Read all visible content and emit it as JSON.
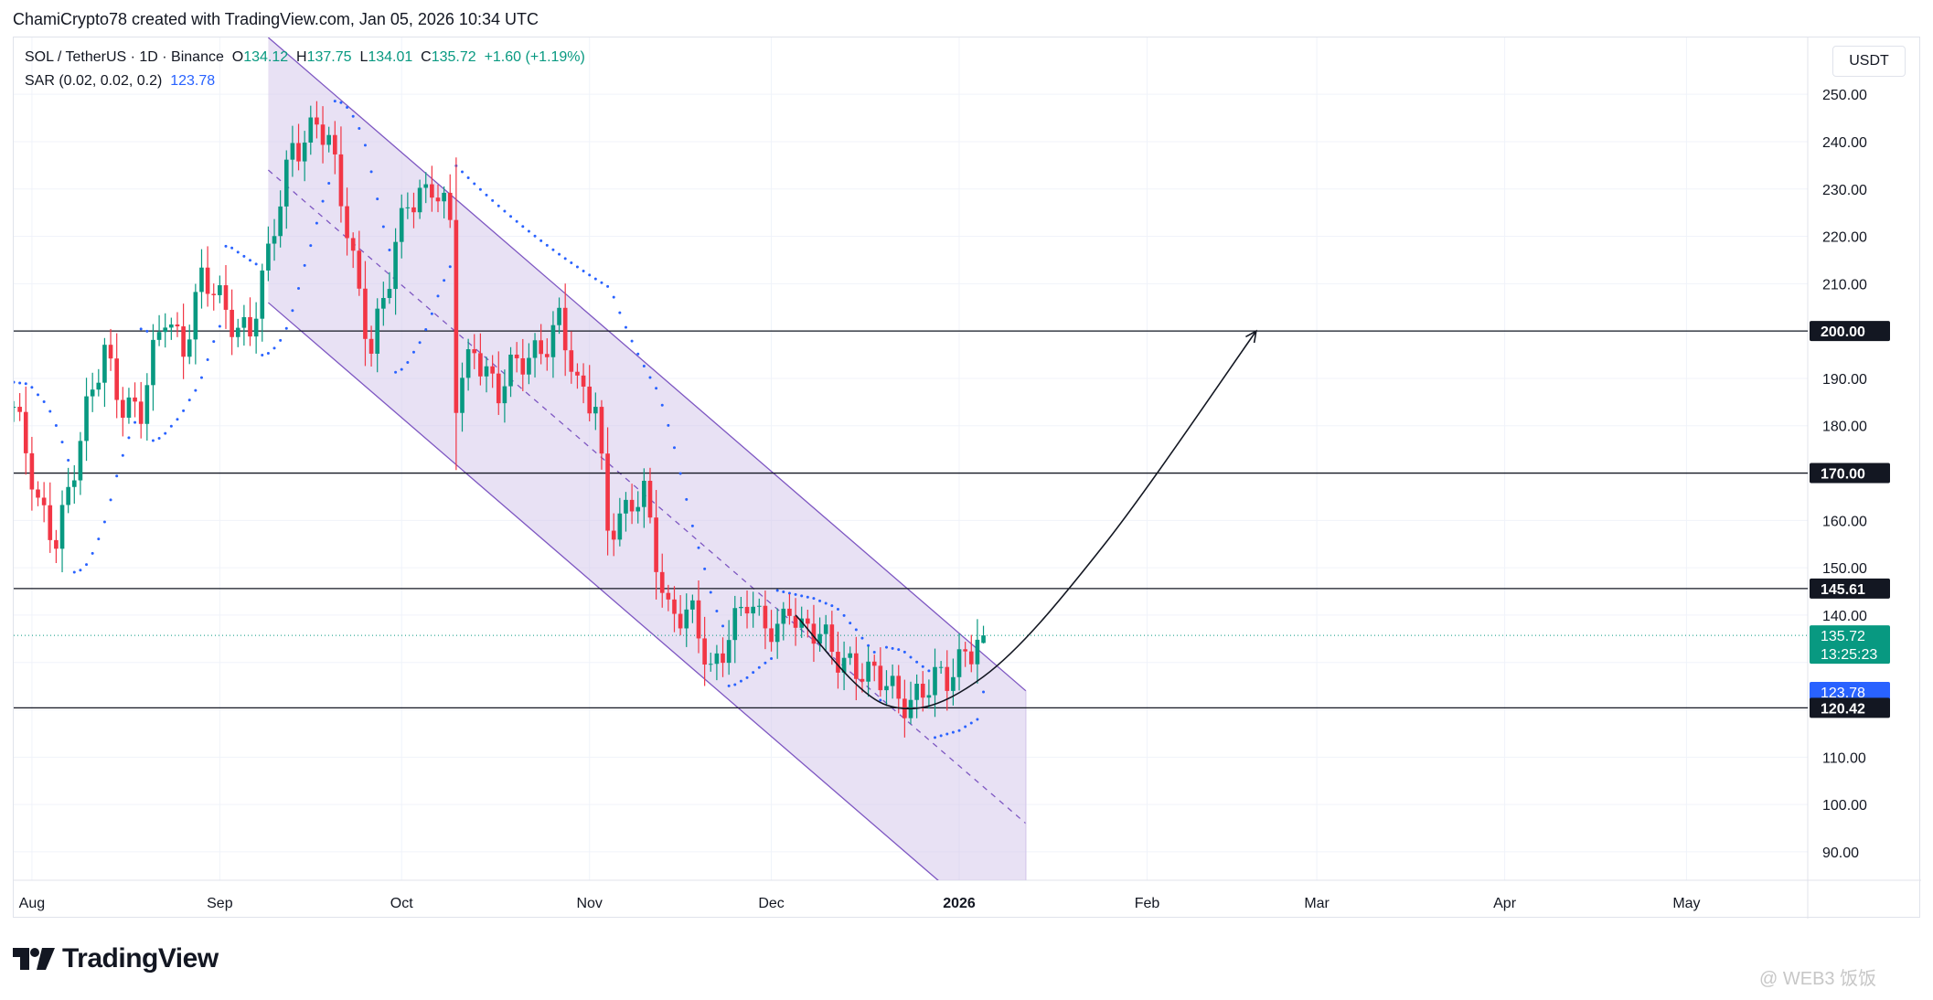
{
  "header": {
    "attribution": "ChamiCrypto78 created with TradingView.com, Jan 05, 2026 10:34 UTC"
  },
  "legend": {
    "symbol": "SOL / TetherUS · 1D · Binance",
    "open_label": "O",
    "open": "134.12",
    "high_label": "H",
    "high": "137.75",
    "low_label": "L",
    "low": "134.01",
    "close_label": "C",
    "close": "135.72",
    "change": "+1.60 (+1.19%)",
    "sar_label": "SAR (0.02, 0.02, 0.2)",
    "sar_value": "123.78"
  },
  "currency_button": "USDT",
  "branding": {
    "logo_text": "TradingView",
    "watermark": "@ WEB3 饭饭"
  },
  "colors": {
    "up": "#089981",
    "down": "#f23645",
    "sar": "#2962ff",
    "channel_fill": "#d1c4e9",
    "channel_line": "#7e57c2",
    "level_line": "#131722",
    "price_tag": "#089981",
    "sar_tag": "#2962ff"
  },
  "chart_data": {
    "type": "candlestick",
    "symbol": "SOL / TetherUS",
    "interval": "1D",
    "exchange": "Binance",
    "y_axis": {
      "range": [
        84,
        262
      ],
      "ticks": [
        90,
        100,
        110,
        120,
        130,
        140,
        150,
        160,
        170,
        180,
        190,
        200,
        210,
        220,
        230,
        240,
        250
      ],
      "tick_labels": [
        "90.00",
        "100.00",
        "110.00",
        "120.00",
        "130.00",
        "140.00",
        "150.00",
        "160.00",
        "170.00",
        "180.00",
        "190.00",
        "200.00",
        "210.00",
        "220.00",
        "230.00",
        "240.00",
        "250.00"
      ],
      "hidden_ticks": [
        120,
        130,
        170,
        200
      ],
      "position": "right"
    },
    "x_axis": {
      "start": "2025-07-29",
      "end": "2026-05-21",
      "labels": [
        {
          "date": "2025-08-01",
          "text": "Aug",
          "bold": false
        },
        {
          "date": "2025-09-01",
          "text": "Sep",
          "bold": false
        },
        {
          "date": "2025-10-01",
          "text": "Oct",
          "bold": false
        },
        {
          "date": "2025-11-01",
          "text": "Nov",
          "bold": false
        },
        {
          "date": "2025-12-01",
          "text": "Dec",
          "bold": false
        },
        {
          "date": "2026-01-01",
          "text": "2026",
          "bold": true
        },
        {
          "date": "2026-02-01",
          "text": "Feb",
          "bold": false
        },
        {
          "date": "2026-03-01",
          "text": "Mar",
          "bold": false
        },
        {
          "date": "2026-04-01",
          "text": "Apr",
          "bold": false
        },
        {
          "date": "2026-05-01",
          "text": "May",
          "bold": false
        }
      ]
    },
    "grid": true,
    "candles_start": "2025-07-29",
    "close_path": [
      [
        "2025-07-29",
        184
      ],
      [
        "2025-08-02",
        162
      ],
      [
        "2025-08-05",
        158
      ],
      [
        "2025-08-09",
        176
      ],
      [
        "2025-08-13",
        196
      ],
      [
        "2025-08-16",
        186
      ],
      [
        "2025-08-19",
        182
      ],
      [
        "2025-08-23",
        204
      ],
      [
        "2025-08-26",
        198
      ],
      [
        "2025-08-29",
        210
      ],
      [
        "2025-09-02",
        204
      ],
      [
        "2025-09-06",
        201
      ],
      [
        "2025-09-09",
        214
      ],
      [
        "2025-09-13",
        240
      ],
      [
        "2025-09-17",
        244
      ],
      [
        "2025-09-19",
        238
      ],
      [
        "2025-09-22",
        222
      ],
      [
        "2025-09-26",
        197
      ],
      [
        "2025-09-29",
        210
      ],
      [
        "2025-10-02",
        228
      ],
      [
        "2025-10-06",
        232
      ],
      [
        "2025-10-09",
        221
      ],
      [
        "2025-10-10",
        184
      ],
      [
        "2025-10-13",
        198
      ],
      [
        "2025-10-17",
        187
      ],
      [
        "2025-10-21",
        193
      ],
      [
        "2025-10-24",
        198
      ],
      [
        "2025-10-27",
        202
      ],
      [
        "2025-10-30",
        186
      ],
      [
        "2025-11-02",
        186
      ],
      [
        "2025-11-04",
        160
      ],
      [
        "2025-11-07",
        160
      ],
      [
        "2025-11-10",
        165
      ],
      [
        "2025-11-14",
        142
      ],
      [
        "2025-11-18",
        138
      ],
      [
        "2025-11-21",
        128
      ],
      [
        "2025-11-24",
        138
      ],
      [
        "2025-11-27",
        142
      ],
      [
        "2025-11-29",
        137
      ],
      [
        "2025-12-02",
        138
      ],
      [
        "2025-12-04",
        144
      ],
      [
        "2025-12-06",
        136
      ],
      [
        "2025-12-10",
        134
      ],
      [
        "2025-12-14",
        131
      ],
      [
        "2025-12-17",
        126
      ],
      [
        "2025-12-20",
        125
      ],
      [
        "2025-12-24",
        123
      ],
      [
        "2025-12-27",
        124
      ],
      [
        "2025-12-30",
        126
      ],
      [
        "2026-01-02",
        134
      ],
      [
        "2026-01-05",
        135.72
      ]
    ],
    "last_candle": {
      "date": "2026-01-05",
      "open": 134.12,
      "high": 137.75,
      "low": 134.01,
      "close": 135.72
    },
    "series": [
      {
        "name": "SAR (0.02, 0.02, 0.2)",
        "last": 123.78,
        "style": "dots"
      }
    ],
    "horizontal_levels": [
      200,
      170,
      145.61,
      120.42
    ],
    "price_tags": [
      {
        "value": 200,
        "text": "200.00",
        "kind": "level"
      },
      {
        "value": 170,
        "text": "170.00",
        "kind": "level"
      },
      {
        "value": 145.61,
        "text": "145.61",
        "kind": "level"
      },
      {
        "value": 135.72,
        "text": "135.72",
        "sub": "13:25:23",
        "kind": "last"
      },
      {
        "value": 123.78,
        "text": "123.78",
        "kind": "sar"
      },
      {
        "value": 120.42,
        "text": "120.42",
        "kind": "level"
      }
    ],
    "last_price_line": 135.72,
    "channel": {
      "upper": [
        [
          "2025-09-09",
          262
        ],
        [
          "2026-01-12",
          124
        ]
      ],
      "lower": [
        [
          "2025-09-09",
          206
        ],
        [
          "2026-01-12",
          68
        ]
      ],
      "middle": [
        [
          "2025-09-09",
          234
        ],
        [
          "2026-01-12",
          96
        ]
      ],
      "fill_until": "2026-01-12"
    },
    "projection_curve": [
      [
        "2025-12-05",
        140
      ],
      [
        "2025-12-20",
        121
      ],
      [
        "2026-01-05",
        127
      ],
      [
        "2026-01-25",
        155
      ],
      [
        "2026-02-19",
        200
      ]
    ]
  }
}
